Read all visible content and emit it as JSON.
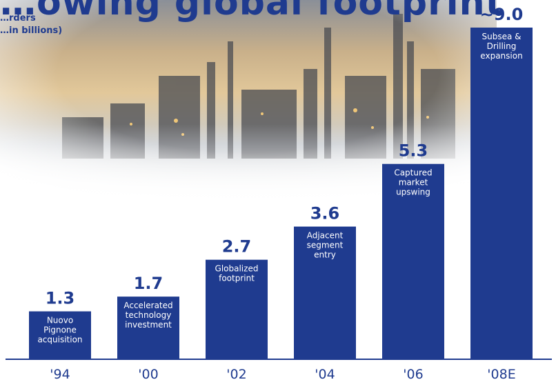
{
  "page": {
    "title": "…owing global footprint",
    "subtitle_line1": "…rders",
    "subtitle_line2": "…in billions)"
  },
  "colors": {
    "bar": "#1f3b8f",
    "value_text": "#1f3b8f",
    "bar_label_text": "#ffffff",
    "axis": "#1f3b8f",
    "tick_text": "#1f3b8f"
  },
  "chart_data": {
    "type": "bar",
    "categories": [
      "'94",
      "'00",
      "'02",
      "'04",
      "'06",
      "'08E"
    ],
    "values": [
      1.3,
      1.7,
      2.7,
      3.6,
      5.3,
      9.0
    ],
    "data_labels": [
      "1.3",
      "1.7",
      "2.7",
      "3.6",
      "5.3",
      "~9.0"
    ],
    "bar_annotations": [
      [
        "Nuovo",
        "Pignone",
        "acquisition"
      ],
      [
        "Accelerated",
        "technology",
        "investment"
      ],
      [
        "Globalized",
        "footprint"
      ],
      [
        "Adjacent",
        "segment",
        "entry"
      ],
      [
        "Captured",
        "market",
        "upswing"
      ],
      [
        "Subsea &",
        "Drilling",
        "expansion"
      ]
    ],
    "ylim": [
      0,
      9.0
    ],
    "xlabel": "",
    "ylabel": "",
    "grid": false,
    "legend": "none"
  }
}
